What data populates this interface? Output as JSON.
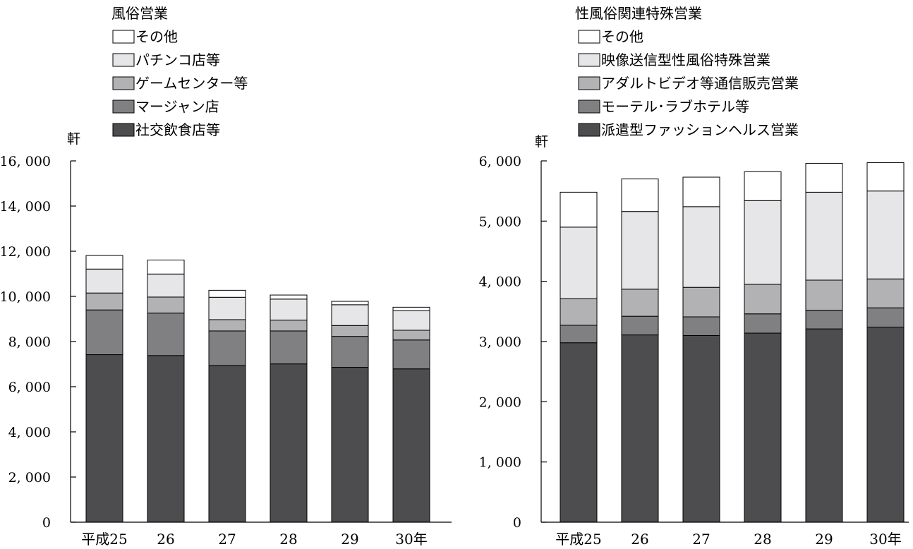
{
  "chart_data": [
    {
      "type": "bar",
      "stacked": true,
      "title": "風俗営業",
      "ylabel": "軒",
      "xlabel": "",
      "categories": [
        "平成25",
        "26",
        "27",
        "28",
        "29",
        "30年"
      ],
      "ylim": [
        0,
        16000
      ],
      "yticks": [
        0,
        2000,
        4000,
        6000,
        8000,
        10000,
        12000,
        14000,
        16000
      ],
      "ytick_labels": [
        "0",
        "2, 000",
        "4, 000",
        "6, 000",
        "8, 000",
        "10, 000",
        "12, 000",
        "14, 000",
        "16, 000"
      ],
      "grid": false,
      "legend_position": "top",
      "series": [
        {
          "name": "社交飲食店等",
          "color": "#4d4d4f",
          "values": [
            7420,
            7380,
            6940,
            7010,
            6860,
            6790
          ]
        },
        {
          "name": "マージャン店",
          "color": "#808082",
          "values": [
            1980,
            1880,
            1530,
            1460,
            1370,
            1280
          ]
        },
        {
          "name": "ゲームセンター等",
          "color": "#b2b2b4",
          "values": [
            750,
            710,
            500,
            480,
            480,
            430
          ]
        },
        {
          "name": "パチンコ店等",
          "color": "#e6e6e8",
          "values": [
            1060,
            1020,
            990,
            930,
            920,
            860
          ]
        },
        {
          "name": "その他",
          "color": "#ffffff",
          "values": [
            600,
            620,
            310,
            180,
            150,
            160
          ]
        }
      ]
    },
    {
      "type": "bar",
      "stacked": true,
      "title": "性風俗関連特殊営業",
      "ylabel": "軒",
      "xlabel": "",
      "categories": [
        "平成25",
        "26",
        "27",
        "28",
        "29",
        "30年"
      ],
      "ylim": [
        0,
        6000
      ],
      "yticks": [
        0,
        1000,
        2000,
        3000,
        4000,
        5000,
        6000
      ],
      "ytick_labels": [
        "0",
        "1, 000",
        "2, 000",
        "3, 000",
        "4, 000",
        "5, 000",
        "6, 000"
      ],
      "grid": false,
      "legend_position": "top",
      "series": [
        {
          "name": "派遣型ファッションヘルス営業",
          "color": "#4d4d4f",
          "values": [
            2980,
            3110,
            3100,
            3140,
            3210,
            3240
          ]
        },
        {
          "name": "モーテル･ラブホテル等",
          "color": "#808082",
          "values": [
            290,
            310,
            310,
            320,
            310,
            320
          ]
        },
        {
          "name": "アダルトビデオ等通信販売営業",
          "color": "#b2b2b4",
          "values": [
            440,
            450,
            490,
            490,
            500,
            480
          ]
        },
        {
          "name": "映像送信型性風俗特殊営業",
          "color": "#e6e6e8",
          "values": [
            1190,
            1290,
            1340,
            1390,
            1460,
            1460
          ]
        },
        {
          "name": "その他",
          "color": "#ffffff",
          "values": [
            580,
            540,
            490,
            480,
            480,
            470
          ]
        }
      ]
    }
  ]
}
